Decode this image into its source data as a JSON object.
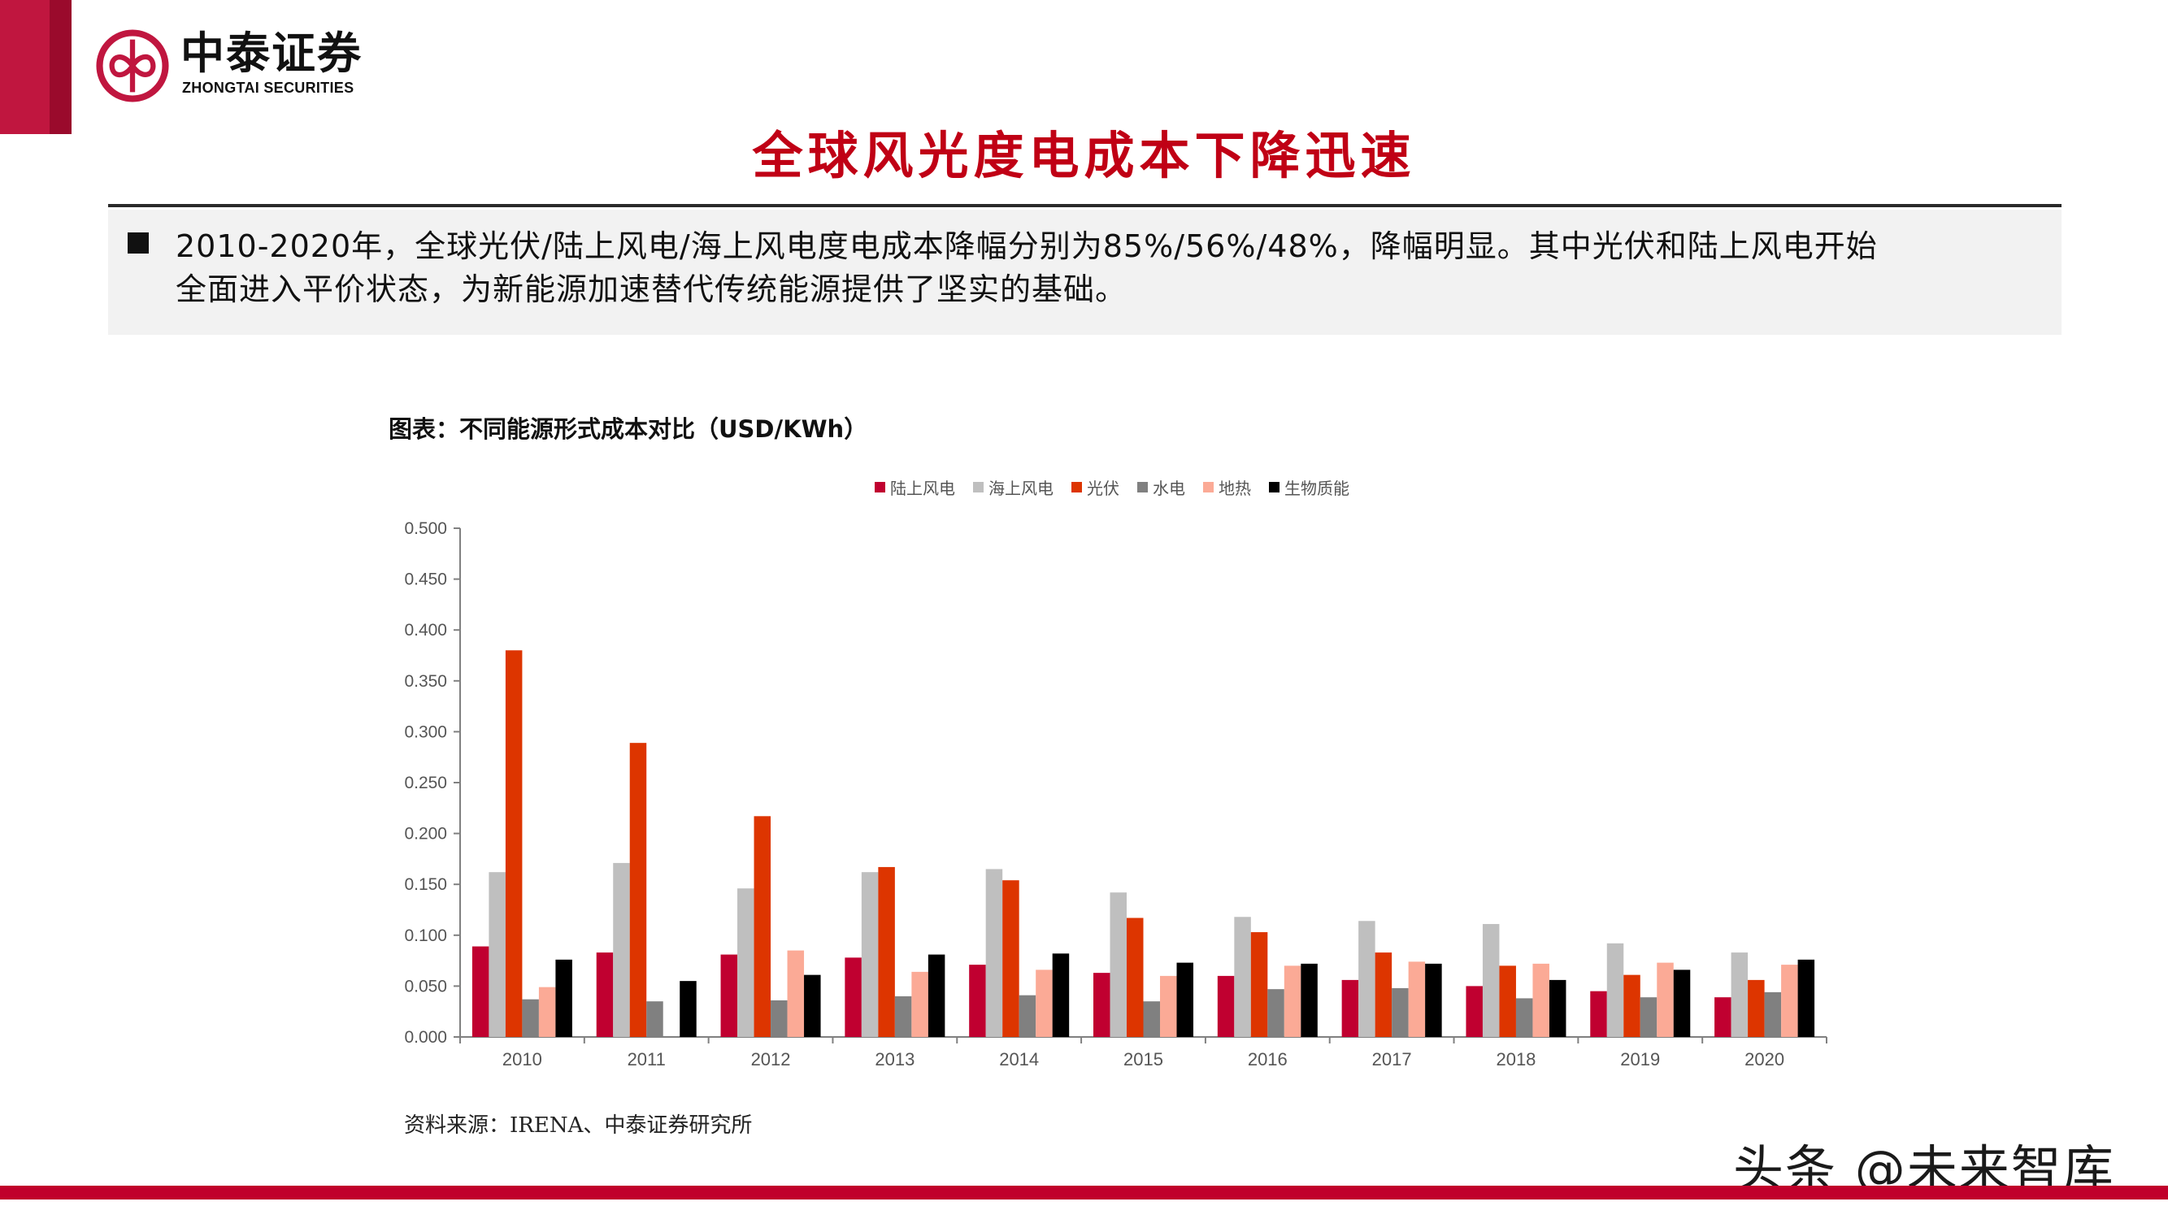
{
  "brand": {
    "name_cn": "中泰证券",
    "name_en": "ZHONGTAI SECURITIES",
    "color_primary": "#c0163f",
    "color_dark": "#9a0a2c"
  },
  "page": {
    "title": "全球风光度电成本下降迅速",
    "title_color": "#c00015",
    "summary_lines": [
      "2010-2020年，全球光伏/陆上风电/海上风电度电成本降幅分别为85%/56%/48%，降幅明显。其中光伏和陆上风电开始",
      "全面进入平价状态，为新能源加速替代传统能源提供了坚实的基础。"
    ],
    "source": "资料来源：IRENA、中泰证券研究所",
    "watermark": "头条 @未来智库"
  },
  "chart_data": {
    "type": "bar",
    "title": "图表：不同能源形式成本对比（USD/KWh）",
    "xlabel": "",
    "ylabel": "",
    "ylim": [
      0,
      0.5
    ],
    "yticks": [
      "0.000",
      "0.050",
      "0.100",
      "0.150",
      "0.200",
      "0.250",
      "0.300",
      "0.350",
      "0.400",
      "0.450",
      "0.500"
    ],
    "grid": false,
    "legend_position": "top",
    "categories": [
      "2010",
      "2011",
      "2012",
      "2013",
      "2014",
      "2015",
      "2016",
      "2017",
      "2018",
      "2019",
      "2020"
    ],
    "series": [
      {
        "name": "陆上风电",
        "color": "#c00030",
        "values": [
          0.089,
          0.083,
          0.081,
          0.078,
          0.071,
          0.063,
          0.06,
          0.056,
          0.05,
          0.045,
          0.039
        ]
      },
      {
        "name": "海上风电",
        "color": "#bfbfbf",
        "values": [
          0.162,
          0.171,
          0.146,
          0.162,
          0.165,
          0.142,
          0.118,
          0.114,
          0.111,
          0.092,
          0.083
        ]
      },
      {
        "name": "光伏",
        "color": "#dd3500",
        "values": [
          0.38,
          0.289,
          0.217,
          0.167,
          0.154,
          0.117,
          0.103,
          0.083,
          0.07,
          0.061,
          0.056
        ]
      },
      {
        "name": "水电",
        "color": "#808080",
        "values": [
          0.037,
          0.035,
          0.036,
          0.04,
          0.041,
          0.035,
          0.047,
          0.048,
          0.038,
          0.039,
          0.044
        ]
      },
      {
        "name": "地热",
        "color": "#fbaa96",
        "values": [
          0.049,
          null,
          0.085,
          0.064,
          0.066,
          0.06,
          0.07,
          0.074,
          0.072,
          0.073,
          0.071
        ]
      },
      {
        "name": "生物质能",
        "color": "#000000",
        "values": [
          0.076,
          0.055,
          0.061,
          0.081,
          0.082,
          0.073,
          0.072,
          0.072,
          0.056,
          0.066,
          0.076
        ]
      }
    ]
  }
}
